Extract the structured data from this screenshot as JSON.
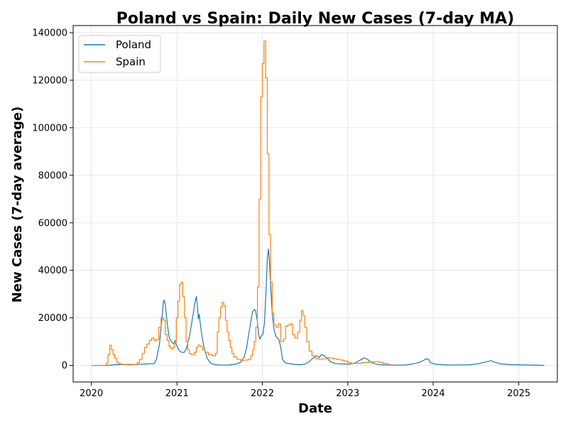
{
  "chart_data": {
    "type": "line",
    "title": "Poland vs Spain: Daily New Cases (7-day MA)",
    "xlabel": "Date",
    "ylabel": "New Cases (7-day average)",
    "xlim": [
      "2019-10-15",
      "2025-06-15"
    ],
    "ylim": [
      -7000,
      143000
    ],
    "x_ticks": [
      "2020",
      "2021",
      "2022",
      "2023",
      "2024",
      "2025"
    ],
    "y_ticks": [
      0,
      20000,
      40000,
      60000,
      80000,
      100000,
      120000,
      140000
    ],
    "grid": true,
    "legend_position": "top-left",
    "series": [
      {
        "name": "Poland",
        "color": "#1f77b4",
        "step": false,
        "points": [
          [
            "2020-01-01",
            0
          ],
          [
            "2020-03-15",
            0
          ],
          [
            "2020-04-10",
            300
          ],
          [
            "2020-05-20",
            350
          ],
          [
            "2020-07-15",
            400
          ],
          [
            "2020-08-20",
            600
          ],
          [
            "2020-09-25",
            700
          ],
          [
            "2020-10-05",
            2500
          ],
          [
            "2020-10-18",
            9000
          ],
          [
            "2020-10-28",
            19000
          ],
          [
            "2020-11-03",
            26000
          ],
          [
            "2020-11-07",
            27500
          ],
          [
            "2020-11-12",
            25500
          ],
          [
            "2020-11-20",
            18000
          ],
          [
            "2020-11-28",
            12000
          ],
          [
            "2020-12-08",
            10000
          ],
          [
            "2020-12-18",
            9000
          ],
          [
            "2020-12-24",
            10500
          ],
          [
            "2020-12-30",
            8500
          ],
          [
            "2021-01-08",
            6500
          ],
          [
            "2021-01-20",
            5500
          ],
          [
            "2021-02-01",
            5500
          ],
          [
            "2021-02-10",
            7000
          ],
          [
            "2021-02-25",
            13000
          ],
          [
            "2021-03-10",
            21000
          ],
          [
            "2021-03-20",
            27000
          ],
          [
            "2021-03-25",
            29000
          ],
          [
            "2021-03-30",
            24000
          ],
          [
            "2021-04-02",
            19500
          ],
          [
            "2021-04-06",
            21500
          ],
          [
            "2021-04-10",
            18000
          ],
          [
            "2021-04-18",
            12000
          ],
          [
            "2021-04-28",
            7000
          ],
          [
            "2021-05-10",
            3000
          ],
          [
            "2021-05-25",
            900
          ],
          [
            "2021-06-10",
            300
          ],
          [
            "2021-07-10",
            100
          ],
          [
            "2021-08-10",
            150
          ],
          [
            "2021-09-10",
            500
          ],
          [
            "2021-09-30",
            1300
          ],
          [
            "2021-10-15",
            3500
          ],
          [
            "2021-10-25",
            7000
          ],
          [
            "2021-11-05",
            14000
          ],
          [
            "2021-11-12",
            18000
          ],
          [
            "2021-11-20",
            22500
          ],
          [
            "2021-11-28",
            23500
          ],
          [
            "2021-12-03",
            23000
          ],
          [
            "2021-12-10",
            19000
          ],
          [
            "2021-12-16",
            13000
          ],
          [
            "2021-12-22",
            11000
          ],
          [
            "2021-12-28",
            12500
          ],
          [
            "2022-01-03",
            13000
          ],
          [
            "2022-01-10",
            18000
          ],
          [
            "2022-01-16",
            30000
          ],
          [
            "2022-01-22",
            45000
          ],
          [
            "2022-01-27",
            49000
          ],
          [
            "2022-02-01",
            42000
          ],
          [
            "2022-02-06",
            32000
          ],
          [
            "2022-02-12",
            22000
          ],
          [
            "2022-02-20",
            15000
          ],
          [
            "2022-03-01",
            12000
          ],
          [
            "2022-03-12",
            11000
          ],
          [
            "2022-03-20",
            8000
          ],
          [
            "2022-03-28",
            2500
          ],
          [
            "2022-04-10",
            1000
          ],
          [
            "2022-05-10",
            500
          ],
          [
            "2022-06-10",
            250
          ],
          [
            "2022-07-01",
            500
          ],
          [
            "2022-07-20",
            1500
          ],
          [
            "2022-08-05",
            3000
          ],
          [
            "2022-08-20",
            4000
          ],
          [
            "2022-09-01",
            3300
          ],
          [
            "2022-09-10",
            4500
          ],
          [
            "2022-09-20",
            4200
          ],
          [
            "2022-10-05",
            3000
          ],
          [
            "2022-10-20",
            1500
          ],
          [
            "2022-11-10",
            700
          ],
          [
            "2022-12-10",
            600
          ],
          [
            "2023-01-10",
            500
          ],
          [
            "2023-02-01",
            1000
          ],
          [
            "2023-02-20",
            2000
          ],
          [
            "2023-03-12",
            3200
          ],
          [
            "2023-03-28",
            2400
          ],
          [
            "2023-04-15",
            1000
          ],
          [
            "2023-05-15",
            300
          ],
          [
            "2023-07-01",
            100
          ],
          [
            "2023-09-01",
            150
          ],
          [
            "2023-10-01",
            500
          ],
          [
            "2023-11-01",
            1200
          ],
          [
            "2023-11-20",
            2000
          ],
          [
            "2023-12-01",
            2700
          ],
          [
            "2023-12-12",
            2600
          ],
          [
            "2023-12-20",
            1200
          ],
          [
            "2024-01-10",
            500
          ],
          [
            "2024-03-01",
            150
          ],
          [
            "2024-06-01",
            200
          ],
          [
            "2024-07-15",
            700
          ],
          [
            "2024-08-20",
            1600
          ],
          [
            "2024-09-05",
            2000
          ],
          [
            "2024-09-20",
            1300
          ],
          [
            "2024-10-15",
            600
          ],
          [
            "2024-12-01",
            300
          ],
          [
            "2025-04-20",
            0
          ]
        ]
      },
      {
        "name": "Spain",
        "color": "#ff7f0e",
        "step": true,
        "points": [
          [
            "2020-01-01",
            0
          ],
          [
            "2020-02-25",
            0
          ],
          [
            "2020-03-05",
            1000
          ],
          [
            "2020-03-12",
            4500
          ],
          [
            "2020-03-20",
            8500
          ],
          [
            "2020-03-27",
            6500
          ],
          [
            "2020-04-03",
            4500
          ],
          [
            "2020-04-10",
            3000
          ],
          [
            "2020-04-17",
            1500
          ],
          [
            "2020-04-24",
            800
          ],
          [
            "2020-05-05",
            400
          ],
          [
            "2020-06-01",
            200
          ],
          [
            "2020-07-01",
            300
          ],
          [
            "2020-07-15",
            1200
          ],
          [
            "2020-07-25",
            2500
          ],
          [
            "2020-08-05",
            5000
          ],
          [
            "2020-08-15",
            7500
          ],
          [
            "2020-08-25",
            9000
          ],
          [
            "2020-09-05",
            10500
          ],
          [
            "2020-09-15",
            11500
          ],
          [
            "2020-09-25",
            10500
          ],
          [
            "2020-10-05",
            11000
          ],
          [
            "2020-10-15",
            16000
          ],
          [
            "2020-10-25",
            20000
          ],
          [
            "2020-11-05",
            19000
          ],
          [
            "2020-11-12",
            13000
          ],
          [
            "2020-11-20",
            10500
          ],
          [
            "2020-11-28",
            8000
          ],
          [
            "2020-12-05",
            7000
          ],
          [
            "2020-12-15",
            7500
          ],
          [
            "2020-12-22",
            10000
          ],
          [
            "2020-12-29",
            20000
          ],
          [
            "2021-01-05",
            27000
          ],
          [
            "2021-01-12",
            34000
          ],
          [
            "2021-01-19",
            35000
          ],
          [
            "2021-01-26",
            29000
          ],
          [
            "2021-02-02",
            20000
          ],
          [
            "2021-02-09",
            10000
          ],
          [
            "2021-02-16",
            6500
          ],
          [
            "2021-02-23",
            5000
          ],
          [
            "2021-03-02",
            4500
          ],
          [
            "2021-03-16",
            5500
          ],
          [
            "2021-03-25",
            7500
          ],
          [
            "2021-04-01",
            8500
          ],
          [
            "2021-04-10",
            8000
          ],
          [
            "2021-04-20",
            6500
          ],
          [
            "2021-05-01",
            5500
          ],
          [
            "2021-05-15",
            4500
          ],
          [
            "2021-06-01",
            4000
          ],
          [
            "2021-06-15",
            5000
          ],
          [
            "2021-06-22",
            14000
          ],
          [
            "2021-06-29",
            20000
          ],
          [
            "2021-07-06",
            24500
          ],
          [
            "2021-07-13",
            26500
          ],
          [
            "2021-07-20",
            25000
          ],
          [
            "2021-07-27",
            19000
          ],
          [
            "2021-08-03",
            14000
          ],
          [
            "2021-08-10",
            10500
          ],
          [
            "2021-08-17",
            7500
          ],
          [
            "2021-08-24",
            5000
          ],
          [
            "2021-09-01",
            3500
          ],
          [
            "2021-09-15",
            2500
          ],
          [
            "2021-10-01",
            2000
          ],
          [
            "2021-10-15",
            2200
          ],
          [
            "2021-11-01",
            2500
          ],
          [
            "2021-11-12",
            4000
          ],
          [
            "2021-11-20",
            6500
          ],
          [
            "2021-11-27",
            10000
          ],
          [
            "2021-12-04",
            16000
          ],
          [
            "2021-12-11",
            33000
          ],
          [
            "2021-12-18",
            70000
          ],
          [
            "2021-12-25",
            113000
          ],
          [
            "2022-01-01",
            127000
          ],
          [
            "2022-01-08",
            136500
          ],
          [
            "2022-01-15",
            121000
          ],
          [
            "2022-01-22",
            89000
          ],
          [
            "2022-01-29",
            55000
          ],
          [
            "2022-02-05",
            35000
          ],
          [
            "2022-02-12",
            22000
          ],
          [
            "2022-02-19",
            17000
          ],
          [
            "2022-03-01",
            16000
          ],
          [
            "2022-03-10",
            17500
          ],
          [
            "2022-03-20",
            10000
          ],
          [
            "2022-04-01",
            11000
          ],
          [
            "2022-04-10",
            16500
          ],
          [
            "2022-04-20",
            17000
          ],
          [
            "2022-05-01",
            17500
          ],
          [
            "2022-05-10",
            13000
          ],
          [
            "2022-05-20",
            11500
          ],
          [
            "2022-06-01",
            14000
          ],
          [
            "2022-06-10",
            19000
          ],
          [
            "2022-06-17",
            23000
          ],
          [
            "2022-06-24",
            21000
          ],
          [
            "2022-07-01",
            16000
          ],
          [
            "2022-07-10",
            10000
          ],
          [
            "2022-07-20",
            6000
          ],
          [
            "2022-08-01",
            4000
          ],
          [
            "2022-08-15",
            2800
          ],
          [
            "2022-09-01",
            2500
          ],
          [
            "2022-09-15",
            2800
          ],
          [
            "2022-10-01",
            3200
          ],
          [
            "2022-10-15",
            3000
          ],
          [
            "2022-11-01",
            2800
          ],
          [
            "2022-11-15",
            2500
          ],
          [
            "2022-12-01",
            2200
          ],
          [
            "2022-12-15",
            1800
          ],
          [
            "2023-01-01",
            1200
          ],
          [
            "2023-01-15",
            800
          ],
          [
            "2023-02-01",
            900
          ],
          [
            "2023-03-01",
            1200
          ],
          [
            "2023-04-01",
            1500
          ],
          [
            "2023-05-01",
            1600
          ],
          [
            "2023-05-15",
            1300
          ],
          [
            "2023-06-01",
            800
          ],
          [
            "2023-06-20",
            400
          ],
          [
            "2023-07-01",
            0
          ]
        ]
      }
    ]
  }
}
